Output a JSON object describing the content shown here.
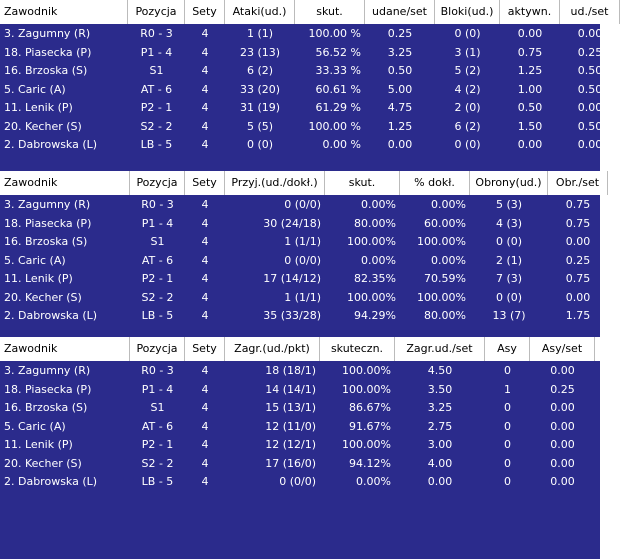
{
  "tables": [
    {
      "headers": [
        "Zawodnik",
        "Pozycja",
        "Sety",
        "Ataki(ud.)",
        "skut.",
        "udane/set",
        "Bloki(ud.)",
        "aktywn.",
        "ud./set"
      ],
      "rows": [
        [
          "3. Zagumny (R)",
          "R0 - 3",
          "4",
          "1 (1)",
          "100.00 %",
          "0.25",
          "0 (0)",
          "0.00",
          "0.00"
        ],
        [
          "18. Piasecka (P)",
          "P1 - 4",
          "4",
          "23 (13)",
          "56.52 %",
          "3.25",
          "3 (1)",
          "0.75",
          "0.25"
        ],
        [
          "16. Brzoska (S)",
          "S1",
          "4",
          "6 (2)",
          "33.33 %",
          "0.50",
          "5 (2)",
          "1.25",
          "0.50"
        ],
        [
          "5. Caric (A)",
          "AT - 6",
          "4",
          "33 (20)",
          "60.61 %",
          "5.00",
          "4 (2)",
          "1.00",
          "0.50"
        ],
        [
          "11. Lenik (P)",
          "P2 - 1",
          "4",
          "31 (19)",
          "61.29 %",
          "4.75",
          "2 (0)",
          "0.50",
          "0.00"
        ],
        [
          "20. Kecher (S)",
          "S2 - 2",
          "4",
          "5 (5)",
          "100.00 %",
          "1.25",
          "6 (2)",
          "1.50",
          "0.50"
        ],
        [
          "2. Dabrowska (L)",
          "LB - 5",
          "4",
          "0 (0)",
          "0.00 %",
          "0.00",
          "0 (0)",
          "0.00",
          "0.00"
        ]
      ]
    },
    {
      "headers": [
        "Zawodnik",
        "Pozycja",
        "Sety",
        "Przyj.(ud./dokł.)",
        "skut.",
        "% dokł.",
        "Obrony(ud.)",
        "Obr./set"
      ],
      "rows": [
        [
          "3. Zagumny (R)",
          "R0 - 3",
          "4",
          "0 (0/0)",
          "0.00%",
          "0.00%",
          "5 (3)",
          "0.75"
        ],
        [
          "18. Piasecka (P)",
          "P1 - 4",
          "4",
          "30 (24/18)",
          "80.00%",
          "60.00%",
          "4 (3)",
          "0.75"
        ],
        [
          "16. Brzoska (S)",
          "S1",
          "4",
          "1 (1/1)",
          "100.00%",
          "100.00%",
          "0 (0)",
          "0.00"
        ],
        [
          "5. Caric (A)",
          "AT - 6",
          "4",
          "0 (0/0)",
          "0.00%",
          "0.00%",
          "2 (1)",
          "0.25"
        ],
        [
          "11. Lenik (P)",
          "P2 - 1",
          "4",
          "17 (14/12)",
          "82.35%",
          "70.59%",
          "7 (3)",
          "0.75"
        ],
        [
          "20. Kecher (S)",
          "S2 - 2",
          "4",
          "1 (1/1)",
          "100.00%",
          "100.00%",
          "0 (0)",
          "0.00"
        ],
        [
          "2. Dabrowska (L)",
          "LB - 5",
          "4",
          "35 (33/28)",
          "94.29%",
          "80.00%",
          "13 (7)",
          "1.75"
        ]
      ]
    },
    {
      "headers": [
        "Zawodnik",
        "Pozycja",
        "Sety",
        "Zagr.(ud./pkt)",
        "skuteczn.",
        "Zagr.ud./set",
        "Asy",
        "Asy/set"
      ],
      "rows": [
        [
          "3. Zagumny (R)",
          "R0 - 3",
          "4",
          "18 (18/1)",
          "100.00%",
          "4.50",
          "0",
          "0.00"
        ],
        [
          "18. Piasecka (P)",
          "P1 - 4",
          "4",
          "14 (14/1)",
          "100.00%",
          "3.50",
          "1",
          "0.25"
        ],
        [
          "16. Brzoska (S)",
          "S1",
          "4",
          "15 (13/1)",
          "86.67%",
          "3.25",
          "0",
          "0.00"
        ],
        [
          "5. Caric (A)",
          "AT - 6",
          "4",
          "12 (11/0)",
          "91.67%",
          "2.75",
          "0",
          "0.00"
        ],
        [
          "11. Lenik (P)",
          "P2 - 1",
          "4",
          "12 (12/1)",
          "100.00%",
          "3.00",
          "0",
          "0.00"
        ],
        [
          "20. Kecher (S)",
          "S2 - 2",
          "4",
          "17 (16/0)",
          "94.12%",
          "4.00",
          "0",
          "0.00"
        ],
        [
          "2. Dabrowska (L)",
          "LB - 5",
          "4",
          "0 (0/0)",
          "0.00%",
          "0.00",
          "0",
          "0.00"
        ]
      ]
    }
  ]
}
